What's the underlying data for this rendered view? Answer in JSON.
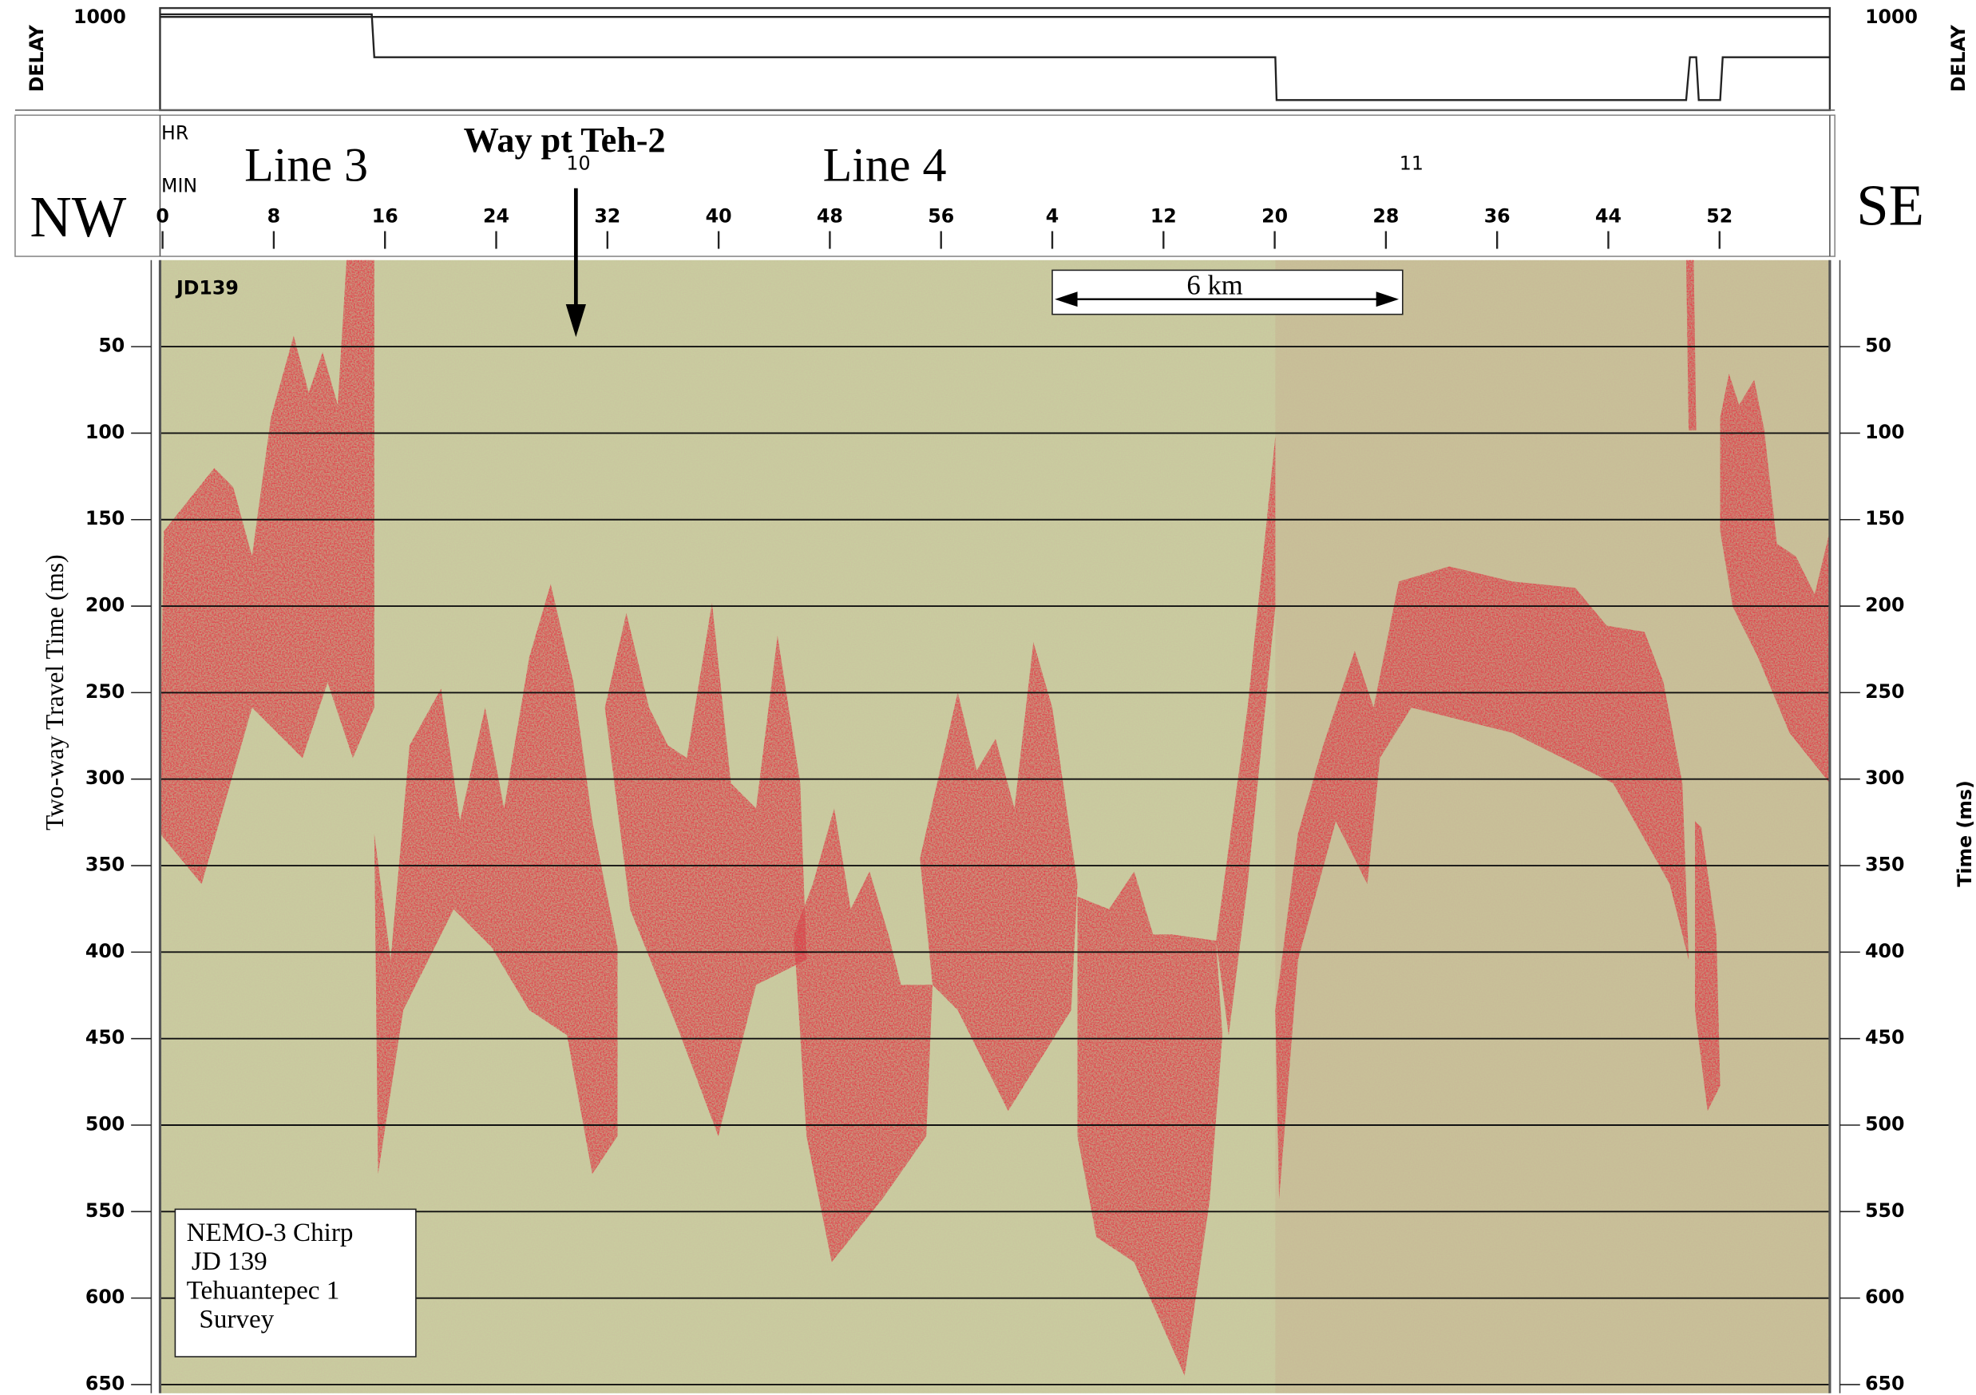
{
  "delay_panel": {
    "label": "DELAY",
    "tick": "1000"
  },
  "time_panel": {
    "hour_label": "HR",
    "minute_label": "MIN",
    "hour_labels": [
      "10",
      "11"
    ],
    "minute_labels": [
      "0",
      "8",
      "16",
      "24",
      "32",
      "40",
      "48",
      "56",
      "4",
      "12",
      "20",
      "28",
      "36",
      "44",
      "52"
    ]
  },
  "annotations": {
    "line3": "Line 3",
    "line4": "Line 4",
    "waypoint": "Way pt Teh-2",
    "nw": "NW",
    "se": "SE",
    "scale": "6 km",
    "jd": "JD139"
  },
  "info_box": [
    "NEMO-3 Chirp",
    "JD 139",
    "Tehuantepec 1",
    "Survey"
  ],
  "left_axis": {
    "label": "Two-way Travel Time (ms)"
  },
  "right_axis": {
    "label": "Time (ms)"
  },
  "ylim": [
    0,
    655
  ],
  "yticks": [
    50,
    100,
    150,
    200,
    250,
    300,
    350,
    400,
    450,
    500,
    550,
    600,
    650
  ]
}
